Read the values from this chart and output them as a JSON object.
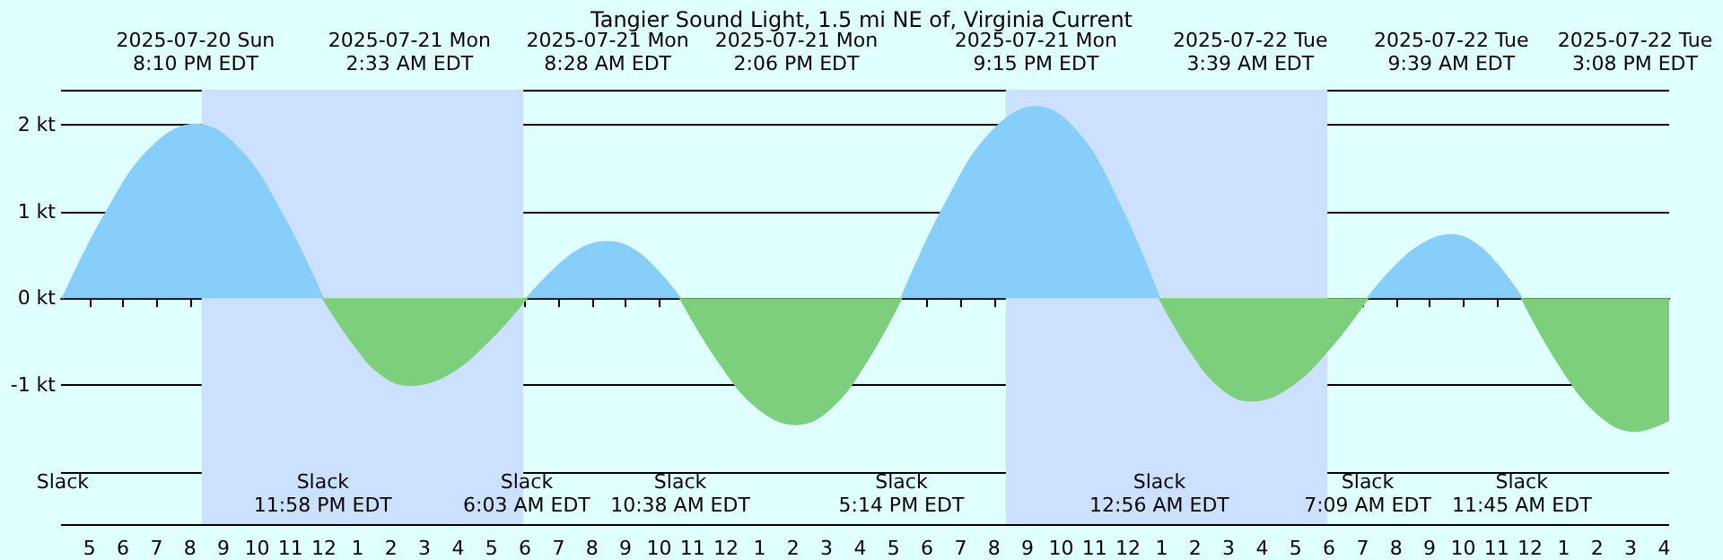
{
  "chart_data": {
    "type": "area",
    "title": "Tangier Sound Light, 1.5 mi NE of, Virginia Current",
    "series": [
      {
        "color": "#87cefa",
        "x": [
          "2025-07-20T16:12",
          "2025-07-20T17:31",
          "2025-07-20T18:50",
          "2025-07-20T20:10",
          "2025-07-20T21:26",
          "2025-07-20T22:42",
          "2025-07-20T23:58",
          "2025-07-21T03:00",
          "2025-07-21T06:03",
          "2025-07-21T06:52",
          "2025-07-21T07:40",
          "2025-07-21T08:28",
          "2025-07-21T09:11",
          "2025-07-21T09:55",
          "2025-07-21T10:38",
          "2025-07-21T14:00",
          "2025-07-21T17:14",
          "2025-07-21T18:34",
          "2025-07-21T19:55",
          "2025-07-21T21:15",
          "2025-07-21T22:29",
          "2025-07-21T23:43",
          "2025-07-22T00:56",
          "2025-07-22T04:00",
          "2025-07-22T07:09",
          "2025-07-22T07:59",
          "2025-07-22T08:49",
          "2025-07-22T09:39",
          "2025-07-22T10:21",
          "2025-07-22T11:03",
          "2025-07-22T11:45"
        ],
        "values": [
          0,
          1.0,
          1.73,
          2.0,
          1.73,
          1.0,
          0,
          null,
          0,
          0.33,
          0.57,
          0.65,
          0.57,
          0.33,
          0,
          null,
          0,
          1.1,
          1.91,
          2.2,
          1.91,
          1.1,
          0,
          null,
          0,
          0.37,
          0.63,
          0.73,
          0.63,
          0.37,
          0
        ]
      },
      {
        "color": "#7dcf7d",
        "x": [
          "2025-07-20T23:58",
          "2025-07-21T00:50",
          "2025-07-21T01:41",
          "2025-07-21T02:33",
          "2025-07-21T03:43",
          "2025-07-21T04:53",
          "2025-07-21T06:03",
          "2025-07-21T08:00",
          "2025-07-21T10:38",
          "2025-07-21T11:47",
          "2025-07-21T12:56",
          "2025-07-21T14:06",
          "2025-07-21T15:08",
          "2025-07-21T16:11",
          "2025-07-21T17:14",
          "2025-07-21T21:00",
          "2025-07-22T00:56",
          "2025-07-22T01:50",
          "2025-07-22T02:44",
          "2025-07-22T03:39",
          "2025-07-22T04:49",
          "2025-07-22T05:59",
          "2025-07-22T07:09",
          "2025-07-22T09:00",
          "2025-07-22T11:45",
          "2025-07-22T12:53",
          "2025-07-22T14:01",
          "2025-07-22T15:08",
          "2025-07-22T16:09"
        ],
        "values": [
          0,
          -0.5,
          -0.87,
          -1.0,
          -0.87,
          -0.5,
          0,
          null,
          0,
          -0.73,
          -1.26,
          -1.45,
          -1.26,
          -0.73,
          0,
          null,
          0,
          -0.59,
          -1.02,
          -1.18,
          -1.02,
          -0.59,
          0,
          null,
          0,
          -0.77,
          -1.33,
          -1.53,
          -1.4
        ]
      }
    ],
    "xlim": [
      "2025-07-20T16:09",
      "2025-07-22T16:09"
    ],
    "xticks": [
      {
        "value": "2025-07-20T17:00",
        "label": "5"
      },
      {
        "value": "2025-07-20T18:00",
        "label": "6"
      },
      {
        "value": "2025-07-20T19:00",
        "label": "7"
      },
      {
        "value": "2025-07-20T20:00",
        "label": "8"
      },
      {
        "value": "2025-07-20T21:00",
        "label": "9"
      },
      {
        "value": "2025-07-20T22:00",
        "label": "10"
      },
      {
        "value": "2025-07-20T23:00",
        "label": "11"
      },
      {
        "value": "2025-07-21T00:00",
        "label": "12"
      },
      {
        "value": "2025-07-21T01:00",
        "label": "1"
      },
      {
        "value": "2025-07-21T02:00",
        "label": "2"
      },
      {
        "value": "2025-07-21T03:00",
        "label": "3"
      },
      {
        "value": "2025-07-21T04:00",
        "label": "4"
      },
      {
        "value": "2025-07-21T05:00",
        "label": "5"
      },
      {
        "value": "2025-07-21T06:00",
        "label": "6"
      },
      {
        "value": "2025-07-21T07:00",
        "label": "7"
      },
      {
        "value": "2025-07-21T08:00",
        "label": "8"
      },
      {
        "value": "2025-07-21T09:00",
        "label": "9"
      },
      {
        "value": "2025-07-21T10:00",
        "label": "10"
      },
      {
        "value": "2025-07-21T11:00",
        "label": "11"
      },
      {
        "value": "2025-07-21T12:00",
        "label": "12"
      },
      {
        "value": "2025-07-21T13:00",
        "label": "1"
      },
      {
        "value": "2025-07-21T14:00",
        "label": "2"
      },
      {
        "value": "2025-07-21T15:00",
        "label": "3"
      },
      {
        "value": "2025-07-21T16:00",
        "label": "4"
      },
      {
        "value": "2025-07-21T17:00",
        "label": "5"
      },
      {
        "value": "2025-07-21T18:00",
        "label": "6"
      },
      {
        "value": "2025-07-21T19:00",
        "label": "7"
      },
      {
        "value": "2025-07-21T20:00",
        "label": "8"
      },
      {
        "value": "2025-07-21T21:00",
        "label": "9"
      },
      {
        "value": "2025-07-21T22:00",
        "label": "10"
      },
      {
        "value": "2025-07-21T23:00",
        "label": "11"
      },
      {
        "value": "2025-07-22T00:00",
        "label": "12"
      },
      {
        "value": "2025-07-22T01:00",
        "label": "1"
      },
      {
        "value": "2025-07-22T02:00",
        "label": "2"
      },
      {
        "value": "2025-07-22T03:00",
        "label": "3"
      },
      {
        "value": "2025-07-22T04:00",
        "label": "4"
      },
      {
        "value": "2025-07-22T05:00",
        "label": "5"
      },
      {
        "value": "2025-07-22T06:00",
        "label": "6"
      },
      {
        "value": "2025-07-22T07:00",
        "label": "7"
      },
      {
        "value": "2025-07-22T08:00",
        "label": "8"
      },
      {
        "value": "2025-07-22T09:00",
        "label": "9"
      },
      {
        "value": "2025-07-22T10:00",
        "label": "10"
      },
      {
        "value": "2025-07-22T11:00",
        "label": "11"
      },
      {
        "value": "2025-07-22T12:00",
        "label": "12"
      },
      {
        "value": "2025-07-22T13:00",
        "label": "1"
      },
      {
        "value": "2025-07-22T14:00",
        "label": "2"
      },
      {
        "value": "2025-07-22T15:00",
        "label": "3"
      },
      {
        "value": "2025-07-22T16:00",
        "label": "4"
      }
    ],
    "ylim": [
      -2.6,
      2.4
    ],
    "yticks": [
      {
        "value": -1,
        "label": "-1 kt"
      },
      {
        "value": 0,
        "label": "0 kt"
      },
      {
        "value": 1,
        "label": "1 kt"
      },
      {
        "value": 2,
        "label": "2 kt"
      }
    ],
    "grid": "y",
    "marker": "none",
    "bands": [
      {
        "axis": "x",
        "from": "2025-07-20T20:21",
        "to": "2025-07-21T05:57",
        "color": "#cce0ff"
      },
      {
        "axis": "x",
        "from": "2025-07-21T20:21",
        "to": "2025-07-22T05:57",
        "color": "#cce0ff"
      }
    ],
    "annotations": [
      "2025-07-20 Sun\n8:10 PM EDT",
      "2025-07-21 Mon\n2:33 AM EDT",
      "2025-07-21 Mon\n8:28 AM EDT",
      "2025-07-21 Mon\n2:06 PM EDT",
      "2025-07-21 Mon\n9:15 PM EDT",
      "2025-07-22 Tue\n3:39 AM EDT",
      "2025-07-22 Tue\n9:39 AM EDT",
      "2025-07-22 Tue\n3:08 PM EDT",
      "Slack",
      "Slack\n11:58 PM EDT",
      "Slack\n6:03 AM EDT",
      "Slack\n10:38 AM EDT",
      "Slack\n5:14 PM EDT",
      "Slack\n12:56 AM EDT",
      "Slack\n7:09 AM EDT",
      "Slack\n11:45 AM EDT"
    ]
  }
}
